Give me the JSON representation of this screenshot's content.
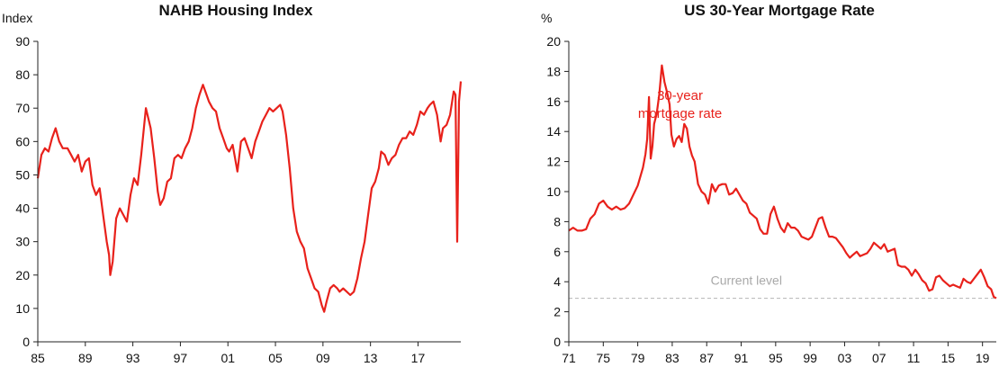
{
  "chart_data": [
    {
      "type": "line",
      "title": "NAHB Housing Index",
      "ylabel": "Index",
      "xlabel": "",
      "ylim": [
        0,
        90
      ],
      "yticks": [
        0,
        10,
        20,
        30,
        40,
        50,
        60,
        70,
        80,
        90
      ],
      "xlim": [
        1985,
        2020.6
      ],
      "xticks": [
        1985,
        1989,
        1993,
        1997,
        2001,
        2005,
        2009,
        2013,
        2017
      ],
      "xtick_labels": [
        "85",
        "89",
        "93",
        "97",
        "01",
        "05",
        "09",
        "13",
        "17"
      ],
      "grid": false,
      "series": [
        {
          "color": "#e8211b",
          "x": [
            1985.0,
            1985.3,
            1985.6,
            1985.9,
            1986.2,
            1986.5,
            1986.8,
            1987.1,
            1987.5,
            1987.8,
            1988.1,
            1988.4,
            1988.7,
            1989.0,
            1989.3,
            1989.6,
            1989.9,
            1990.2,
            1990.5,
            1990.8,
            1991.0,
            1991.1,
            1991.3,
            1991.6,
            1991.9,
            1992.2,
            1992.5,
            1992.8,
            1993.1,
            1993.4,
            1993.7,
            1993.9,
            1994.1,
            1994.5,
            1994.8,
            1995.1,
            1995.3,
            1995.6,
            1995.9,
            1996.2,
            1996.5,
            1996.8,
            1997.1,
            1997.4,
            1997.7,
            1998.0,
            1998.3,
            1998.6,
            1998.9,
            1999.1,
            1999.4,
            1999.7,
            2000.0,
            2000.3,
            2000.6,
            2000.9,
            2001.1,
            2001.4,
            2001.6,
            2001.8,
            2002.1,
            2002.4,
            2002.7,
            2003.0,
            2003.3,
            2003.6,
            2003.9,
            2004.2,
            2004.5,
            2004.8,
            2005.1,
            2005.4,
            2005.6,
            2005.9,
            2006.2,
            2006.5,
            2006.8,
            2007.1,
            2007.4,
            2007.7,
            2008.0,
            2008.3,
            2008.6,
            2008.9,
            2009.1,
            2009.3,
            2009.6,
            2009.9,
            2010.2,
            2010.4,
            2010.7,
            2011.0,
            2011.3,
            2011.6,
            2011.9,
            2012.2,
            2012.5,
            2012.8,
            2013.1,
            2013.4,
            2013.7,
            2013.9,
            2014.2,
            2014.5,
            2014.8,
            2015.1,
            2015.4,
            2015.7,
            2016.0,
            2016.3,
            2016.6,
            2016.9,
            2017.2,
            2017.5,
            2017.8,
            2018.0,
            2018.3,
            2018.6,
            2018.9,
            2019.1,
            2019.4,
            2019.7,
            2020.0,
            2020.15,
            2020.3,
            2020.45,
            2020.6
          ],
          "y": [
            49,
            56,
            58,
            57,
            61,
            64,
            60,
            58,
            58,
            56,
            54,
            56,
            51,
            54,
            55,
            47,
            44,
            46,
            38,
            30,
            26,
            20,
            24,
            37,
            40,
            38,
            36,
            44,
            49,
            47,
            56,
            63,
            70,
            64,
            55,
            45,
            41,
            43,
            48,
            49,
            55,
            56,
            55,
            58,
            60,
            64,
            70,
            74,
            77,
            75,
            72,
            70,
            69,
            64,
            61,
            58,
            57,
            59,
            55,
            51,
            60,
            61,
            58,
            55,
            60,
            63,
            66,
            68,
            70,
            69,
            70,
            71,
            69,
            62,
            52,
            40,
            33,
            30,
            28,
            22,
            19,
            16,
            15,
            11,
            9,
            12,
            16,
            17,
            16,
            15,
            16,
            15,
            14,
            15,
            19,
            25,
            30,
            38,
            46,
            48,
            52,
            57,
            56,
            53,
            55,
            56,
            59,
            61,
            61,
            63,
            62,
            65,
            69,
            68,
            70,
            71,
            72,
            68,
            60,
            64,
            65,
            68,
            75,
            74,
            30,
            72,
            78
          ]
        }
      ]
    },
    {
      "type": "line",
      "title": "US 30-Year Mortgage Rate",
      "ylabel": "%",
      "xlabel": "",
      "ylim": [
        0,
        20
      ],
      "yticks": [
        0,
        2,
        4,
        6,
        8,
        10,
        12,
        14,
        16,
        18,
        20
      ],
      "xlim": [
        1971,
        2020.6
      ],
      "xticks": [
        1971,
        1975,
        1979,
        1983,
        1987,
        1991,
        1995,
        1999,
        2003,
        2007,
        2011,
        2015,
        2019
      ],
      "xtick_labels": [
        "71",
        "75",
        "79",
        "83",
        "87",
        "91",
        "95",
        "99",
        "03",
        "07",
        "11",
        "15",
        "19"
      ],
      "grid": false,
      "annotations": [
        {
          "text": "30-year",
          "x": 1983.9,
          "y": 16.1
        },
        {
          "text": "mortgage rate",
          "x": 1983.9,
          "y": 14.9
        },
        {
          "text": "Current level",
          "x": 1991.6,
          "y": 3.8
        }
      ],
      "reference_line": {
        "y": 2.9,
        "color": "#b5b5b5"
      },
      "series": [
        {
          "color": "#e8211b",
          "x": [
            1971.0,
            1971.5,
            1972.0,
            1972.5,
            1973.0,
            1973.5,
            1974.0,
            1974.5,
            1975.0,
            1975.5,
            1976.0,
            1976.5,
            1977.0,
            1977.5,
            1978.0,
            1978.5,
            1979.0,
            1979.3,
            1979.6,
            1979.9,
            1980.1,
            1980.3,
            1980.5,
            1980.7,
            1980.9,
            1981.2,
            1981.5,
            1981.8,
            1982.1,
            1982.4,
            1982.7,
            1982.9,
            1983.2,
            1983.5,
            1983.8,
            1984.1,
            1984.4,
            1984.7,
            1985.0,
            1985.3,
            1985.6,
            1986.0,
            1986.4,
            1986.8,
            1987.2,
            1987.6,
            1988.0,
            1988.4,
            1988.8,
            1989.2,
            1989.6,
            1990.0,
            1990.4,
            1990.8,
            1991.2,
            1991.6,
            1992.0,
            1992.4,
            1992.8,
            1993.2,
            1993.6,
            1994.0,
            1994.4,
            1994.8,
            1995.2,
            1995.6,
            1996.0,
            1996.4,
            1996.8,
            1997.2,
            1997.6,
            1998.0,
            1998.4,
            1998.8,
            1999.2,
            1999.6,
            2000.0,
            2000.4,
            2000.8,
            2001.2,
            2001.6,
            2002.0,
            2002.4,
            2002.8,
            2003.2,
            2003.6,
            2004.0,
            2004.4,
            2004.8,
            2005.2,
            2005.6,
            2006.0,
            2006.4,
            2006.8,
            2007.2,
            2007.6,
            2008.0,
            2008.4,
            2008.8,
            2009.2,
            2009.6,
            2010.0,
            2010.4,
            2010.8,
            2011.2,
            2011.6,
            2012.0,
            2012.4,
            2012.8,
            2013.2,
            2013.6,
            2014.0,
            2014.4,
            2014.8,
            2015.2,
            2015.6,
            2016.0,
            2016.4,
            2016.8,
            2017.2,
            2017.6,
            2018.0,
            2018.4,
            2018.8,
            2019.2,
            2019.6,
            2020.0,
            2020.3,
            2020.6
          ],
          "y": [
            7.4,
            7.6,
            7.4,
            7.4,
            7.5,
            8.2,
            8.5,
            9.2,
            9.4,
            9.0,
            8.8,
            9.0,
            8.8,
            8.9,
            9.2,
            9.8,
            10.4,
            11.0,
            11.6,
            12.5,
            13.5,
            16.3,
            12.2,
            13.0,
            14.5,
            15.2,
            16.5,
            18.4,
            17.3,
            16.6,
            15.8,
            13.8,
            13.0,
            13.5,
            13.7,
            13.3,
            14.5,
            14.2,
            13.0,
            12.4,
            12.0,
            10.5,
            10.0,
            9.8,
            9.2,
            10.5,
            10.0,
            10.4,
            10.5,
            10.5,
            9.8,
            9.9,
            10.2,
            9.8,
            9.4,
            9.2,
            8.6,
            8.4,
            8.2,
            7.5,
            7.2,
            7.2,
            8.5,
            9.0,
            8.2,
            7.6,
            7.3,
            7.9,
            7.6,
            7.6,
            7.4,
            7.0,
            6.9,
            6.8,
            7.0,
            7.6,
            8.2,
            8.3,
            7.6,
            7.0,
            7.0,
            6.9,
            6.6,
            6.3,
            5.9,
            5.6,
            5.8,
            6.0,
            5.7,
            5.8,
            5.9,
            6.2,
            6.6,
            6.4,
            6.2,
            6.5,
            6.0,
            6.1,
            6.2,
            5.1,
            5.0,
            5.0,
            4.8,
            4.4,
            4.8,
            4.5,
            4.1,
            3.9,
            3.4,
            3.5,
            4.3,
            4.4,
            4.1,
            3.9,
            3.7,
            3.8,
            3.7,
            3.6,
            4.2,
            4.0,
            3.9,
            4.2,
            4.5,
            4.8,
            4.3,
            3.7,
            3.5,
            3.0,
            2.9
          ]
        }
      ]
    }
  ]
}
